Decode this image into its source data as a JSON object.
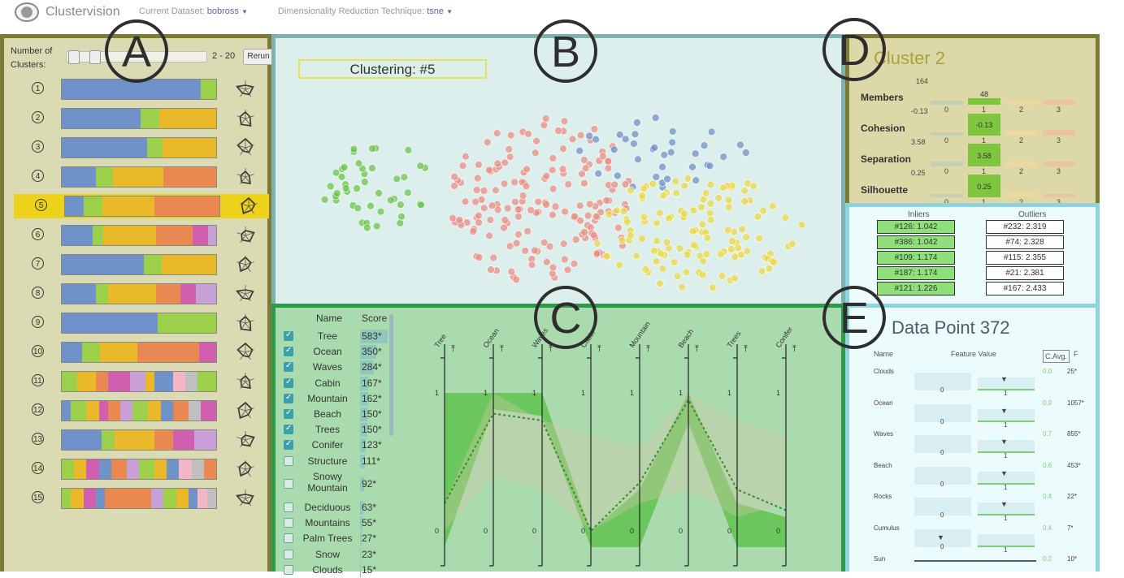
{
  "header": {
    "app_title": "Clustervision",
    "dataset_label": "Current Dataset:",
    "dataset_value": "bobross",
    "technique_label": "Dimensionality Reduction Technique:",
    "technique_value": "tsne"
  },
  "panel_letters": {
    "a": "A",
    "b": "B",
    "c": "C",
    "d": "D",
    "e": "E"
  },
  "clusters_panel": {
    "label_line1": "Number of",
    "label_line2": "Clusters:",
    "range": "2 - 20",
    "rerun_label": "Rerun",
    "selected": 5,
    "rows": [
      {
        "num": "1",
        "segments": [
          [
            "#6f93c9",
            90
          ],
          [
            "#9dd04a",
            10
          ]
        ]
      },
      {
        "num": "2",
        "segments": [
          [
            "#6f93c9",
            51
          ],
          [
            "#9dd04a",
            12
          ],
          [
            "#e9b92a",
            37
          ]
        ]
      },
      {
        "num": "3",
        "segments": [
          [
            "#6f93c9",
            55
          ],
          [
            "#9dd04a",
            10
          ],
          [
            "#e9b92a",
            35
          ]
        ]
      },
      {
        "num": "4",
        "segments": [
          [
            "#6f93c9",
            22
          ],
          [
            "#9dd04a",
            11
          ],
          [
            "#e9b92a",
            33
          ],
          [
            "#e98850",
            34
          ]
        ]
      },
      {
        "num": "5",
        "segments": [
          [
            "#6f93c9",
            12
          ],
          [
            "#9dd04a",
            12
          ],
          [
            "#e9b92a",
            34
          ],
          [
            "#e98850",
            42
          ]
        ]
      },
      {
        "num": "6",
        "segments": [
          [
            "#6f93c9",
            20
          ],
          [
            "#9dd04a",
            7
          ],
          [
            "#e9b92a",
            34
          ],
          [
            "#e98850",
            24
          ],
          [
            "#d15fb0",
            10
          ],
          [
            "#c6a0d6",
            5
          ]
        ]
      },
      {
        "num": "7",
        "segments": [
          [
            "#6f93c9",
            53
          ],
          [
            "#9dd04a",
            12
          ],
          [
            "#e9b92a",
            35
          ]
        ]
      },
      {
        "num": "8",
        "segments": [
          [
            "#6f93c9",
            22
          ],
          [
            "#9dd04a",
            8
          ],
          [
            "#e9b92a",
            31
          ],
          [
            "#e98850",
            16
          ],
          [
            "#d15fb0",
            10
          ],
          [
            "#c6a0d6",
            13
          ]
        ]
      },
      {
        "num": "9",
        "segments": [
          [
            "#6f93c9",
            62
          ],
          [
            "#9dd04a",
            38
          ]
        ]
      },
      {
        "num": "10",
        "segments": [
          [
            "#6f93c9",
            13
          ],
          [
            "#9dd04a",
            12
          ],
          [
            "#e9b92a",
            24
          ],
          [
            "#e98850",
            40
          ],
          [
            "#d15fb0",
            11
          ]
        ]
      },
      {
        "num": "11",
        "segments": [
          [
            "#9dd04a",
            10
          ],
          [
            "#e9b92a",
            12
          ],
          [
            "#e98850",
            8
          ],
          [
            "#d15fb0",
            14
          ],
          [
            "#c6a0d6",
            10
          ],
          [
            "#e9b92a",
            6
          ],
          [
            "#6f93c9",
            12
          ],
          [
            "#f2b6c7",
            8
          ],
          [
            "#bfbfbf",
            8
          ],
          [
            "#9dd04a",
            12
          ]
        ]
      },
      {
        "num": "12",
        "segments": [
          [
            "#6f93c9",
            6
          ],
          [
            "#9dd04a",
            10
          ],
          [
            "#e9b92a",
            8
          ],
          [
            "#d15fb0",
            6
          ],
          [
            "#e98850",
            8
          ],
          [
            "#c6a0d6",
            8
          ],
          [
            "#9dd04a",
            10
          ],
          [
            "#e9b92a",
            8
          ],
          [
            "#6f93c9",
            8
          ],
          [
            "#e98850",
            10
          ],
          [
            "#bfbfbf",
            8
          ],
          [
            "#d15fb0",
            10
          ]
        ]
      },
      {
        "num": "13",
        "segments": [
          [
            "#6f93c9",
            26
          ],
          [
            "#9dd04a",
            8
          ],
          [
            "#e9b92a",
            26
          ],
          [
            "#e98850",
            12
          ],
          [
            "#d15fb0",
            14
          ],
          [
            "#c6a0d6",
            14
          ]
        ]
      },
      {
        "num": "14",
        "segments": [
          [
            "#9dd04a",
            8
          ],
          [
            "#e9b92a",
            8
          ],
          [
            "#d15fb0",
            8
          ],
          [
            "#6f93c9",
            8
          ],
          [
            "#e98850",
            10
          ],
          [
            "#c6a0d6",
            8
          ],
          [
            "#9dd04a",
            10
          ],
          [
            "#e9b92a",
            8
          ],
          [
            "#6f93c9",
            8
          ],
          [
            "#f2b6c7",
            8
          ],
          [
            "#bfbfbf",
            8
          ],
          [
            "#e98850",
            8
          ]
        ]
      },
      {
        "num": "15",
        "segments": [
          [
            "#9dd04a",
            6
          ],
          [
            "#e9b92a",
            8
          ],
          [
            "#d15fb0",
            8
          ],
          [
            "#6f93c9",
            6
          ],
          [
            "#e98850",
            30
          ],
          [
            "#c6a0d6",
            8
          ],
          [
            "#9dd04a",
            8
          ],
          [
            "#e9b92a",
            8
          ],
          [
            "#6f93c9",
            6
          ],
          [
            "#f2b6c7",
            6
          ],
          [
            "#bfbfbf",
            6
          ]
        ]
      }
    ]
  },
  "projection_panel": {
    "clustering_label": "Clustering: #5"
  },
  "features_panel": {
    "name_header": "Name",
    "score_header": "Score",
    "features": [
      {
        "name": "Tree",
        "score": "583*",
        "checked": true,
        "fill": 1.0
      },
      {
        "name": "Ocean",
        "score": "350*",
        "checked": true,
        "fill": 0.6
      },
      {
        "name": "Waves",
        "score": "284*",
        "checked": true,
        "fill": 0.49
      },
      {
        "name": "Cabin",
        "score": "167*",
        "checked": true,
        "fill": 0.29
      },
      {
        "name": "Mountain",
        "score": "162*",
        "checked": true,
        "fill": 0.28
      },
      {
        "name": "Beach",
        "score": "150*",
        "checked": true,
        "fill": 0.26
      },
      {
        "name": "Trees",
        "score": "150*",
        "checked": true,
        "fill": 0.26
      },
      {
        "name": "Conifer",
        "score": "123*",
        "checked": true,
        "fill": 0.21
      },
      {
        "name": "Structure",
        "score": "111*",
        "checked": false,
        "fill": 0.19
      },
      {
        "name": "Snowy Mountain",
        "score": "92*",
        "checked": false,
        "fill": 0.16
      },
      {
        "name": "Deciduous",
        "score": "63*",
        "checked": false,
        "fill": 0.11
      },
      {
        "name": "Mountains",
        "score": "55*",
        "checked": false,
        "fill": 0.09
      },
      {
        "name": "Palm Trees",
        "score": "27*",
        "checked": false,
        "fill": 0.05
      },
      {
        "name": "Snow",
        "score": "23*",
        "checked": false,
        "fill": 0.04
      },
      {
        "name": "Clouds",
        "score": "15*",
        "checked": false,
        "fill": 0.03
      }
    ],
    "axes": [
      "Tree",
      "Ocean",
      "Waves",
      "Cabin",
      "Mountain",
      "Beach",
      "Trees",
      "Conifer"
    ],
    "axis_top": "1",
    "axis_bottom": "0"
  },
  "cluster_panel": {
    "title": "Cluster 2",
    "metrics": [
      {
        "name": "Members",
        "top_tick": "164",
        "bottom_tick": "-0.13",
        "value_label": "48",
        "values": [
          0.18,
          0.3,
          0.18,
          0.2
        ],
        "highlight": 1
      },
      {
        "name": "Cohesion",
        "top_tick": "",
        "bottom_tick": "3.58",
        "value_label": "-0.13",
        "values": [
          0.15,
          0.95,
          0.2,
          0.25
        ],
        "highlight": 1
      },
      {
        "name": "Separation",
        "top_tick": "",
        "bottom_tick": "0.25",
        "value_label": "3.58",
        "values": [
          0.2,
          1.0,
          0.2,
          0.2
        ],
        "highlight": 1
      },
      {
        "name": "Silhouette",
        "top_tick": "",
        "bottom_tick": "",
        "value_label": "0.25",
        "values": [
          0.15,
          1.0,
          0.2,
          0.15
        ],
        "highlight": 1
      }
    ],
    "categories": [
      "0",
      "1",
      "2",
      "3"
    ],
    "inliers_header": "Inliers",
    "outliers_header": "Outliers",
    "inliers": [
      "#126: 1.042",
      "#386: 1.042",
      "#109: 1.174",
      "#187: 1.174",
      "#121: 1.226"
    ],
    "outliers": [
      "#232: 2.319",
      "#74: 2.328",
      "#115: 2.355",
      "#21: 2.381",
      "#167: 2.433"
    ]
  },
  "datapoint_panel": {
    "title": "Data Point 372",
    "name_header": "Name",
    "value_header": "Feature Value",
    "cavg_header": "C.Avg.",
    "f_header": "F",
    "rows": [
      {
        "name": "Clouds",
        "cavg": "0.0",
        "f": "25*"
      },
      {
        "name": "Ocean",
        "cavg": "0.9",
        "f": "1057*"
      },
      {
        "name": "Waves",
        "cavg": "0.7",
        "f": "855*"
      },
      {
        "name": "Beach",
        "cavg": "0.6",
        "f": "453*"
      },
      {
        "name": "Rocks",
        "cavg": "0.4",
        "f": "22*"
      },
      {
        "name": "Cumulus",
        "cavg": "0.4",
        "f": "7*"
      },
      {
        "name": "Sun",
        "cavg": "0.2",
        "f": "10*"
      }
    ],
    "tick0": "0",
    "tick1": "1"
  },
  "colors": {
    "cluster_blue": "#6f93c9",
    "cluster_green": "#6cc44d",
    "cluster_yellow": "#e9d84a",
    "cluster_red": "#e88f86"
  }
}
